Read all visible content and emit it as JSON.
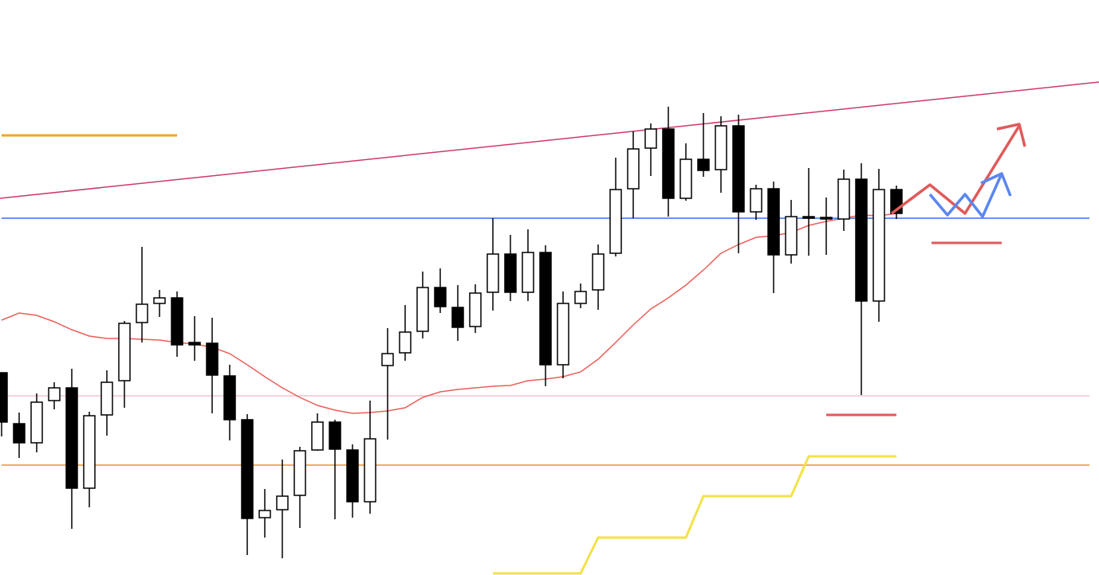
{
  "chart_data": {
    "type": "candlestick",
    "ylim": [
      0,
      722
    ],
    "open": [
      254,
      190,
      166,
      219,
      235,
      109,
      201,
      244,
      317,
      341,
      348,
      292,
      291,
      250,
      195,
      72,
      82,
      100,
      157,
      192,
      157,
      92,
      263,
      279,
      306,
      361,
      336,
      312,
      355,
      403,
      355,
      405,
      264,
      341,
      358,
      404,
      485,
      536,
      560,
      473,
      522,
      509,
      564,
      456,
      485,
      402,
      450,
      449,
      447,
      497,
      344,
      484
    ],
    "high": [
      254,
      204,
      228,
      242,
      259,
      205,
      257,
      319,
      412,
      358,
      356,
      325,
      323,
      264,
      202,
      108,
      145,
      161,
      203,
      195,
      164,
      219,
      310,
      339,
      381,
      385,
      364,
      365,
      448,
      427,
      434,
      414,
      356,
      366,
      415,
      524,
      557,
      567,
      588,
      542,
      580,
      576,
      578,
      490,
      494,
      471,
      511,
      474,
      509,
      517,
      510,
      489
    ],
    "low": [
      174,
      147,
      154,
      208,
      58,
      85,
      175,
      210,
      292,
      324,
      274,
      269,
      203,
      169,
      25,
      47,
      21,
      59,
      156,
      70,
      72,
      77,
      170,
      269,
      297,
      329,
      294,
      304,
      332,
      344,
      344,
      237,
      247,
      335,
      333,
      400,
      448,
      501,
      450,
      470,
      500,
      480,
      404,
      446,
      354,
      391,
      401,
      402,
      432,
      226,
      318,
      447
    ],
    "close": [
      192,
      166,
      217,
      235,
      109,
      200,
      242,
      316,
      340,
      348,
      289,
      289,
      251,
      195,
      71,
      81,
      99,
      156,
      192,
      158,
      92,
      171,
      278,
      305,
      361,
      337,
      311,
      354,
      403,
      355,
      405,
      264,
      341,
      356,
      403,
      484,
      535,
      560,
      473,
      522,
      508,
      564,
      456,
      485,
      402,
      450,
      448,
      447,
      497,
      344,
      484,
      454
    ],
    "up_color": "#ffffff",
    "down_color": "#000000",
    "ma": {
      "color": "#e8605a",
      "values": [
        320,
        329,
        326,
        318,
        308,
        300,
        297,
        297,
        296,
        295,
        292,
        290,
        286,
        278,
        264,
        249,
        235,
        223,
        213,
        207,
        203,
        204,
        206,
        210,
        223,
        230,
        233,
        235,
        237,
        238,
        244,
        246,
        249,
        255,
        271,
        292,
        314,
        334,
        348,
        364,
        383,
        404,
        415,
        424,
        426,
        430,
        439,
        444,
        448,
        452,
        451,
        454
      ]
    },
    "trendline": {
      "color": "#cc3a6a",
      "start": 473,
      "end": 619
    },
    "levels": [
      {
        "value": 552,
        "color": "#f5a623",
        "from": 0,
        "to": 10
      },
      {
        "value": 448,
        "color": "#3a6fe8",
        "from": 0,
        "to": 62
      },
      {
        "value": 225,
        "color": "#f2c4cf",
        "from": 0,
        "to": 62
      },
      {
        "value": 138,
        "color": "#f0902a",
        "from": 0,
        "to": 62
      },
      {
        "value": 201,
        "color": "#e05a5a",
        "from": 47,
        "to": 51
      },
      {
        "value": 417,
        "color": "#e05a5a",
        "from": 53,
        "to": 57
      }
    ],
    "step_line": {
      "color": "#f2e24a",
      "x": [
        28,
        33,
        34,
        39,
        40,
        45,
        46,
        51
      ],
      "values": [
        2,
        2,
        47,
        47,
        99,
        99,
        149,
        149
      ]
    }
  }
}
